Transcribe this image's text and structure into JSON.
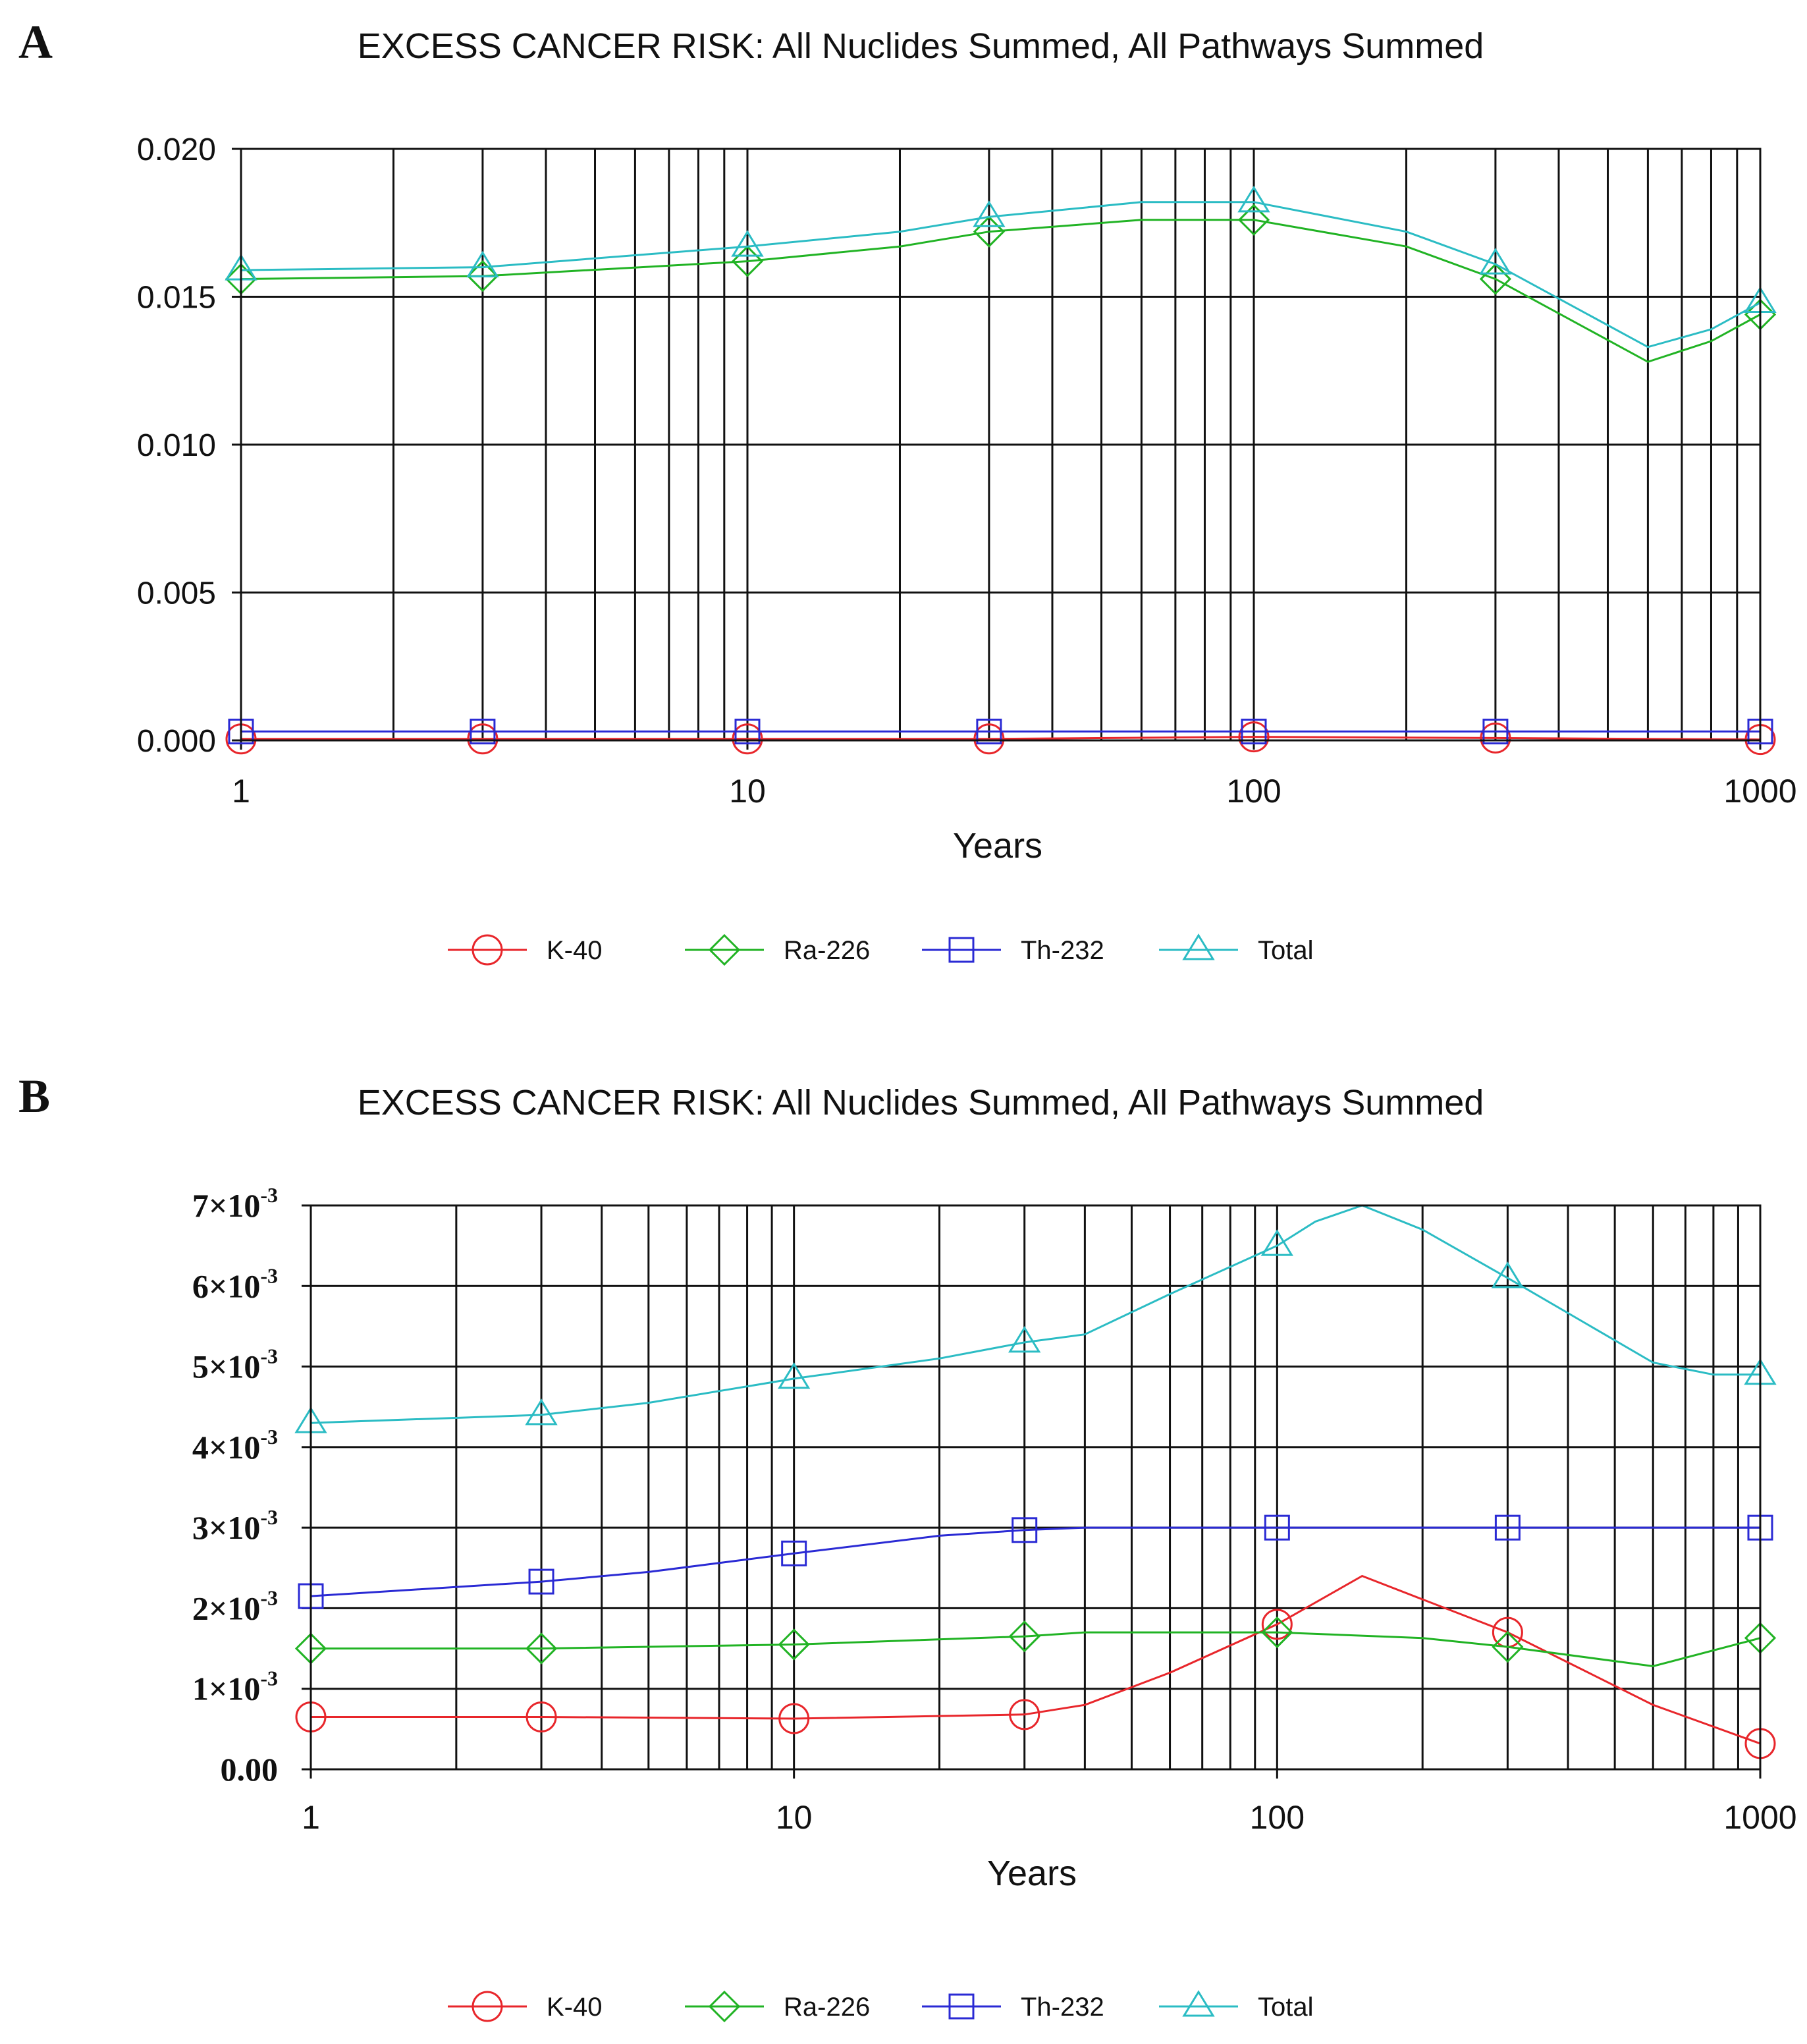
{
  "chart_data": [
    {
      "panel": "A",
      "type": "line",
      "title": "EXCESS CANCER RISK: All Nuclides Summed, All Pathways Summed",
      "xlabel": "Years",
      "xscale": "log",
      "xlim": [
        1,
        1000
      ],
      "ylim": [
        0,
        0.02
      ],
      "x_ticks": [
        1,
        10,
        100,
        1000
      ],
      "x_tick_labels": [
        "1",
        "10",
        "100",
        "1000"
      ],
      "y_ticks": [
        0,
        0.005,
        0.01,
        0.015,
        0.02
      ],
      "y_tick_labels": [
        "0.000",
        "0.005",
        "0.010",
        "0.015",
        "0.020"
      ],
      "grid": true,
      "legend_position": "bottom",
      "series": [
        {
          "name": "K-40",
          "color": "#e8262b",
          "marker": "circle",
          "x": [
            1,
            3,
            10,
            30,
            100,
            300,
            1000
          ],
          "y": [
            5e-05,
            5e-05,
            5e-05,
            5e-05,
            0.00012,
            8e-05,
            3e-05
          ],
          "marker_x": [
            1,
            3,
            10,
            30,
            100,
            300,
            1000
          ]
        },
        {
          "name": "Ra-226",
          "color": "#21b324",
          "marker": "diamond",
          "x": [
            1,
            3,
            10,
            20,
            30,
            60,
            100,
            200,
            300,
            600,
            800,
            1000
          ],
          "y": [
            0.0156,
            0.0157,
            0.0162,
            0.0167,
            0.0172,
            0.0176,
            0.0176,
            0.0167,
            0.0156,
            0.0128,
            0.0135,
            0.0144
          ],
          "marker_x": [
            1,
            3,
            10,
            30,
            100,
            300,
            1000
          ]
        },
        {
          "name": "Th-232",
          "color": "#2a2ad4",
          "marker": "square",
          "x": [
            1,
            3,
            10,
            30,
            100,
            300,
            1000
          ],
          "y": [
            0.0003,
            0.0003,
            0.0003,
            0.0003,
            0.0003,
            0.0003,
            0.0003
          ],
          "marker_x": [
            1,
            3,
            10,
            30,
            100,
            300,
            1000
          ]
        },
        {
          "name": "Total",
          "color": "#2bbcc4",
          "marker": "triangle",
          "x": [
            1,
            3,
            10,
            20,
            30,
            60,
            100,
            200,
            300,
            600,
            800,
            1000
          ],
          "y": [
            0.0159,
            0.016,
            0.0167,
            0.0172,
            0.0177,
            0.0182,
            0.0182,
            0.0172,
            0.0161,
            0.0133,
            0.0139,
            0.0148
          ],
          "marker_x": [
            1,
            3,
            10,
            30,
            100,
            300,
            1000
          ]
        }
      ],
      "legend": [
        "K-40",
        "Ra-226",
        "Th-232",
        "Total"
      ]
    },
    {
      "panel": "B",
      "type": "line",
      "title": "EXCESS CANCER RISK: All Nuclides Summed, All Pathways Summed",
      "xlabel": "Years",
      "xscale": "log",
      "xlim": [
        1,
        1000
      ],
      "ylim": [
        0,
        0.007
      ],
      "x_ticks": [
        1,
        10,
        100,
        1000
      ],
      "x_tick_labels": [
        "1",
        "10",
        "100",
        "1000"
      ],
      "y_ticks": [
        0,
        0.001,
        0.002,
        0.003,
        0.004,
        0.005,
        0.006,
        0.007
      ],
      "y_tick_labels": [
        {
          "base": "0.00",
          "exp": ""
        },
        {
          "base": "1×10",
          "exp": "-3"
        },
        {
          "base": "2×10",
          "exp": "-3"
        },
        {
          "base": "3×10",
          "exp": "-3"
        },
        {
          "base": "4×10",
          "exp": "-3"
        },
        {
          "base": "5×10",
          "exp": "-3"
        },
        {
          "base": "6×10",
          "exp": "-3"
        },
        {
          "base": "7×10",
          "exp": "-3"
        }
      ],
      "grid": true,
      "legend_position": "bottom",
      "series": [
        {
          "name": "K-40",
          "color": "#e8262b",
          "marker": "circle",
          "x": [
            1,
            3,
            10,
            30,
            40,
            60,
            100,
            150,
            300,
            600,
            1000
          ],
          "y": [
            0.00065,
            0.00065,
            0.00063,
            0.00068,
            0.0008,
            0.0012,
            0.0018,
            0.0024,
            0.0017,
            0.0008,
            0.00032
          ],
          "marker_x": [
            1,
            3,
            10,
            30,
            100,
            300,
            1000
          ]
        },
        {
          "name": "Ra-226",
          "color": "#21b324",
          "marker": "diamond",
          "x": [
            1,
            3,
            10,
            30,
            40,
            100,
            200,
            300,
            600,
            1000
          ],
          "y": [
            0.0015,
            0.0015,
            0.00155,
            0.00165,
            0.0017,
            0.0017,
            0.00163,
            0.00152,
            0.00128,
            0.00163
          ],
          "marker_x": [
            1,
            3,
            10,
            30,
            100,
            300,
            1000
          ]
        },
        {
          "name": "Th-232",
          "color": "#2a2ad4",
          "marker": "square",
          "x": [
            1,
            3,
            5,
            10,
            20,
            30,
            40,
            100,
            300,
            1000
          ],
          "y": [
            0.00215,
            0.00233,
            0.00245,
            0.00268,
            0.0029,
            0.00297,
            0.003,
            0.003,
            0.003,
            0.003
          ],
          "marker_x": [
            1,
            3,
            10,
            30,
            100,
            300,
            1000
          ]
        },
        {
          "name": "Total",
          "color": "#2bbcc4",
          "marker": "triangle",
          "x": [
            1,
            3,
            5,
            10,
            20,
            30,
            40,
            60,
            100,
            120,
            150,
            200,
            300,
            600,
            800,
            1000
          ],
          "y": [
            0.0043,
            0.0044,
            0.00455,
            0.00485,
            0.0051,
            0.0053,
            0.0054,
            0.0059,
            0.0065,
            0.0068,
            0.007,
            0.0067,
            0.0061,
            0.00505,
            0.0049,
            0.0049
          ],
          "marker_x": [
            1,
            3,
            10,
            30,
            100,
            300,
            1000
          ]
        }
      ],
      "legend": [
        "K-40",
        "Ra-226",
        "Th-232",
        "Total"
      ]
    }
  ]
}
